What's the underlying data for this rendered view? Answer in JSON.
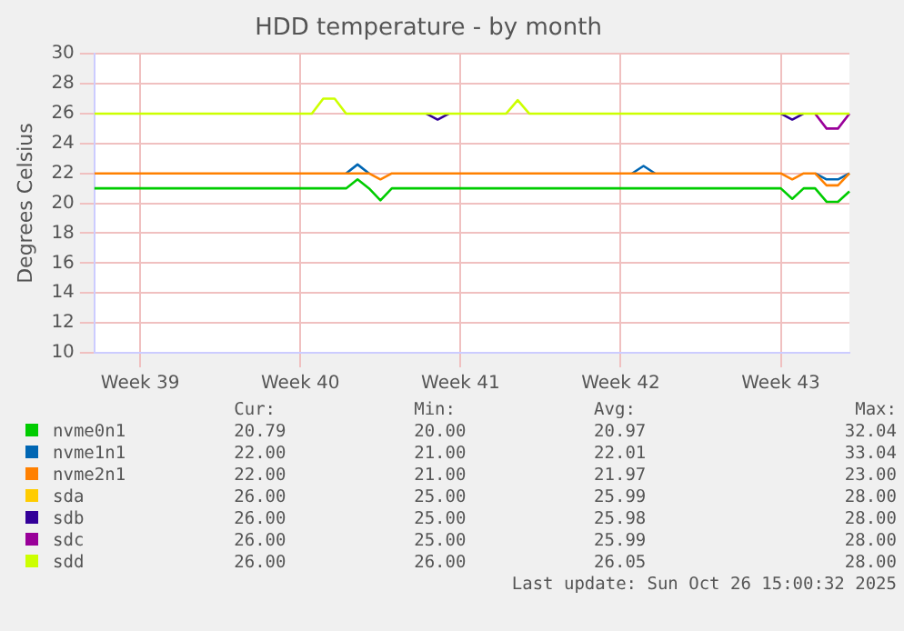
{
  "chart_data": {
    "type": "line",
    "title": "HDD temperature - by month",
    "ylabel": "Degrees Celsius",
    "categories": [
      null,
      null,
      null,
      null,
      "Week 39",
      null,
      null,
      null,
      null,
      null,
      null,
      null,
      null,
      null,
      null,
      null,
      null,
      null,
      "Week 40",
      null,
      null,
      null,
      null,
      null,
      null,
      null,
      null,
      null,
      null,
      null,
      null,
      null,
      "Week 41",
      null,
      null,
      null,
      null,
      null,
      null,
      null,
      null,
      null,
      null,
      null,
      null,
      null,
      "Week 42",
      null,
      null,
      null,
      null,
      null,
      null,
      null,
      null,
      null,
      null,
      null,
      null,
      null,
      "Week 43",
      null,
      null,
      null,
      null,
      null,
      null
    ],
    "ylim": [
      10,
      30
    ],
    "yticks": [
      10,
      12,
      14,
      16,
      18,
      20,
      22,
      24,
      26,
      28,
      30
    ],
    "grid": true,
    "legend": "bottom",
    "marker": "none",
    "line_style": "solid",
    "series": [
      {
        "name": "nvme0n1",
        "color": "#00cc00",
        "values": [
          21,
          21,
          21,
          21,
          21,
          21,
          21,
          21,
          21,
          21,
          21,
          21,
          21,
          21,
          21,
          21,
          21,
          21,
          21,
          21,
          21,
          21,
          21,
          21.6,
          21,
          20.2,
          21,
          21,
          21,
          21,
          21,
          21,
          21,
          21,
          21,
          21,
          21,
          21,
          21,
          21,
          21,
          21,
          21,
          21,
          21,
          21,
          21,
          21,
          21,
          21,
          21,
          21,
          21,
          21,
          21,
          21,
          21,
          21,
          21,
          21,
          21,
          20.3,
          21,
          21,
          20.1,
          20.1,
          20.8
        ]
      },
      {
        "name": "nvme1n1",
        "color": "#0066b3",
        "values": [
          null,
          null,
          null,
          null,
          null,
          null,
          null,
          null,
          null,
          null,
          null,
          null,
          null,
          null,
          null,
          null,
          null,
          null,
          null,
          null,
          null,
          null,
          22,
          22.6,
          22,
          null,
          null,
          null,
          null,
          null,
          null,
          null,
          null,
          null,
          null,
          null,
          null,
          null,
          null,
          null,
          null,
          null,
          null,
          null,
          null,
          null,
          null,
          22,
          22.5,
          22,
          null,
          null,
          null,
          null,
          null,
          null,
          null,
          null,
          null,
          null,
          null,
          null,
          null,
          22,
          21.6,
          21.6,
          22
        ]
      },
      {
        "name": "nvme2n1",
        "color": "#ff8000",
        "values": [
          22,
          22,
          22,
          22,
          22,
          22,
          22,
          22,
          22,
          22,
          22,
          22,
          22,
          22,
          22,
          22,
          22,
          22,
          22,
          22,
          22,
          22,
          22,
          22,
          22,
          21.6,
          22,
          22,
          22,
          22,
          22,
          22,
          22,
          22,
          22,
          22,
          22,
          22,
          22,
          22,
          22,
          22,
          22,
          22,
          22,
          22,
          22,
          22,
          22,
          22,
          22,
          22,
          22,
          22,
          22,
          22,
          22,
          22,
          22,
          22,
          22,
          21.6,
          22,
          22,
          21.2,
          21.2,
          22
        ]
      },
      {
        "name": "sda",
        "color": "#ffcc00",
        "values": [
          null,
          null,
          null,
          null,
          null,
          null,
          null,
          null,
          null,
          null,
          null,
          null,
          null,
          null,
          null,
          null,
          null,
          null,
          null,
          null,
          null,
          null,
          null,
          null,
          null,
          null,
          null,
          null,
          null,
          null,
          null,
          null,
          null,
          null,
          null,
          null,
          null,
          null,
          null,
          null,
          null,
          null,
          null,
          null,
          null,
          null,
          null,
          null,
          null,
          null,
          null,
          null,
          null,
          null,
          null,
          null,
          null,
          null,
          null,
          null,
          null,
          null,
          null,
          null,
          null,
          null,
          null
        ]
      },
      {
        "name": "sdb",
        "color": "#330099",
        "values": [
          null,
          null,
          null,
          null,
          null,
          null,
          null,
          null,
          null,
          null,
          null,
          null,
          null,
          null,
          null,
          null,
          null,
          null,
          null,
          null,
          null,
          null,
          null,
          null,
          null,
          null,
          null,
          null,
          null,
          26,
          25.6,
          26,
          null,
          null,
          null,
          null,
          null,
          null,
          null,
          null,
          null,
          null,
          null,
          null,
          null,
          null,
          null,
          null,
          null,
          null,
          null,
          null,
          null,
          null,
          null,
          null,
          null,
          null,
          null,
          null,
          26,
          25.6,
          26,
          null,
          null,
          null,
          null
        ]
      },
      {
        "name": "sdc",
        "color": "#990099",
        "values": [
          null,
          null,
          null,
          null,
          null,
          null,
          null,
          null,
          null,
          null,
          null,
          null,
          null,
          null,
          null,
          null,
          null,
          null,
          null,
          null,
          null,
          null,
          null,
          null,
          null,
          null,
          null,
          null,
          null,
          null,
          null,
          null,
          null,
          null,
          null,
          null,
          null,
          null,
          null,
          null,
          null,
          null,
          null,
          null,
          null,
          null,
          null,
          null,
          null,
          null,
          null,
          null,
          null,
          null,
          null,
          null,
          null,
          null,
          null,
          null,
          null,
          null,
          null,
          26,
          25,
          25,
          26
        ]
      },
      {
        "name": "sdd",
        "color": "#ccff00",
        "values": [
          26,
          26,
          26,
          26,
          26,
          26,
          26,
          26,
          26,
          26,
          26,
          26,
          26,
          26,
          26,
          26,
          26,
          26,
          26,
          26,
          27,
          27,
          26,
          26,
          26,
          26,
          26,
          26,
          26,
          26,
          26,
          26,
          26,
          26,
          26,
          26,
          26,
          26.9,
          26,
          26,
          26,
          26,
          26,
          26,
          26,
          26,
          26,
          26,
          26,
          26,
          26,
          26,
          26,
          26,
          26,
          26,
          26,
          26,
          26,
          26,
          26,
          26,
          26,
          26,
          26,
          26,
          26
        ]
      }
    ],
    "annotations": [
      "Cur:",
      "Min:",
      "Avg:",
      "Max:",
      "20.79",
      "20.00",
      "20.97",
      "32.04",
      "22.00",
      "21.00",
      "22.01",
      "33.04",
      "22.00",
      "21.00",
      "21.97",
      "23.00",
      "26.00",
      "25.00",
      "25.99",
      "28.00",
      "26.00",
      "25.00",
      "25.98",
      "28.00",
      "26.00",
      "25.00",
      "25.99",
      "28.00",
      "26.00",
      "26.00",
      "26.05",
      "28.00",
      "Last update: Sun Oct 26 15:00:32 2025"
    ]
  }
}
